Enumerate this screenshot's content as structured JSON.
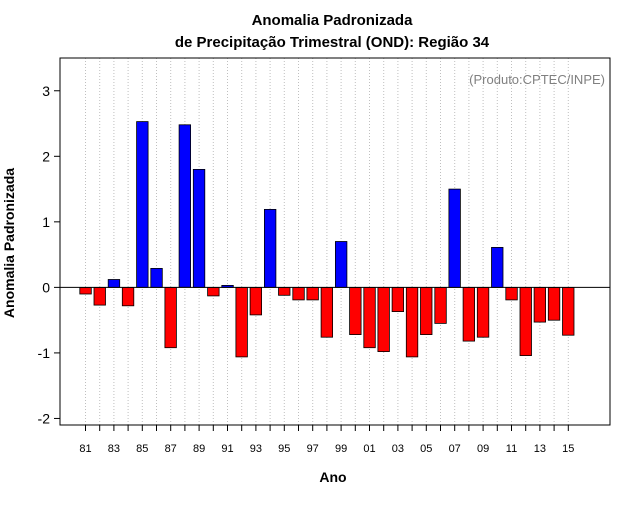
{
  "chart_data": {
    "type": "bar",
    "title_line1": "Anomalia Padronizada",
    "title_line2": "de Precipitação Trimestral (OND): Região 34",
    "watermark": "(Produto:CPTEC/INPE)",
    "xlabel": "Ano",
    "ylabel": "Anomalia Padronizada",
    "ylim": [
      -2.1,
      3.5
    ],
    "yticks": [
      -2,
      -1,
      0,
      1,
      2,
      3
    ],
    "grid": true,
    "x_tick_labels": [
      "81",
      "83",
      "85",
      "87",
      "89",
      "91",
      "93",
      "95",
      "97",
      "99",
      "01",
      "03",
      "05",
      "07",
      "09",
      "11",
      "13",
      "15"
    ],
    "categories": [
      "1981",
      "1982",
      "1983",
      "1984",
      "1985",
      "1986",
      "1987",
      "1988",
      "1989",
      "1990",
      "1991",
      "1992",
      "1993",
      "1994",
      "1995",
      "1996",
      "1997",
      "1998",
      "1999",
      "2000",
      "2001",
      "2002",
      "2003",
      "2004",
      "2005",
      "2006",
      "2007",
      "2008",
      "2009",
      "2010",
      "2011",
      "2012",
      "2013",
      "2014",
      "2015"
    ],
    "values": [
      -0.1,
      -0.27,
      0.12,
      -0.28,
      2.53,
      0.29,
      -0.92,
      2.48,
      1.8,
      -0.13,
      0.03,
      -1.06,
      -0.42,
      1.19,
      -0.12,
      -0.19,
      -0.19,
      -0.76,
      0.7,
      -0.72,
      -0.92,
      -0.98,
      -0.37,
      -1.06,
      -0.72,
      -0.55,
      1.5,
      -0.82,
      -0.76,
      0.61,
      -0.19,
      -1.04,
      -0.53,
      -0.5,
      -0.73
    ],
    "colors": {
      "positive": "#0000ff",
      "negative": "#ff0000",
      "grid": "#bfbfbf"
    }
  }
}
